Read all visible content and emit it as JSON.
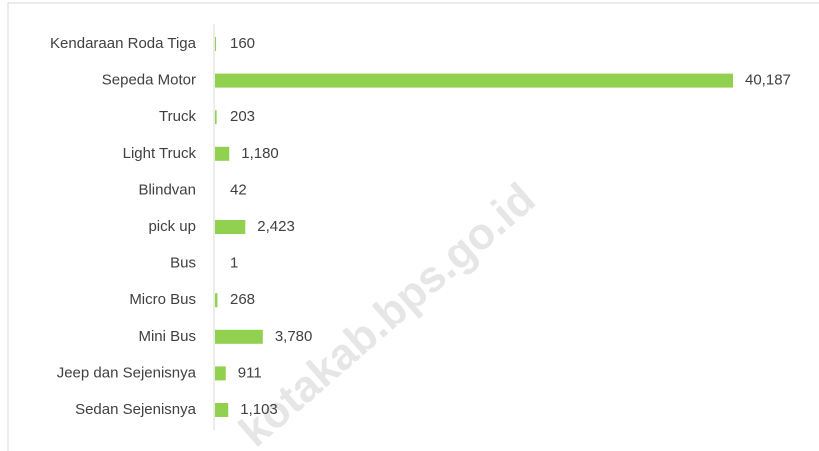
{
  "chart_data": {
    "type": "bar",
    "orientation": "horizontal",
    "categories": [
      "Kendaraan Roda Tiga",
      "Sepeda Motor",
      "Truck",
      "Light Truck",
      "Blindvan",
      "pick up",
      "Bus",
      "Micro Bus",
      "Mini Bus",
      "Jeep dan Sejenisnya",
      "Sedan Sejenisnya"
    ],
    "values": [
      160,
      40187,
      203,
      1180,
      42,
      2423,
      1,
      268,
      3780,
      911,
      1103
    ],
    "value_labels": [
      "160",
      "40,187",
      "203",
      "1,180",
      "42",
      "2,423",
      "1",
      "268",
      "3,780",
      "911",
      "1,103"
    ],
    "color": "#92d050",
    "watermark": "kotakab.bps.go.id"
  }
}
